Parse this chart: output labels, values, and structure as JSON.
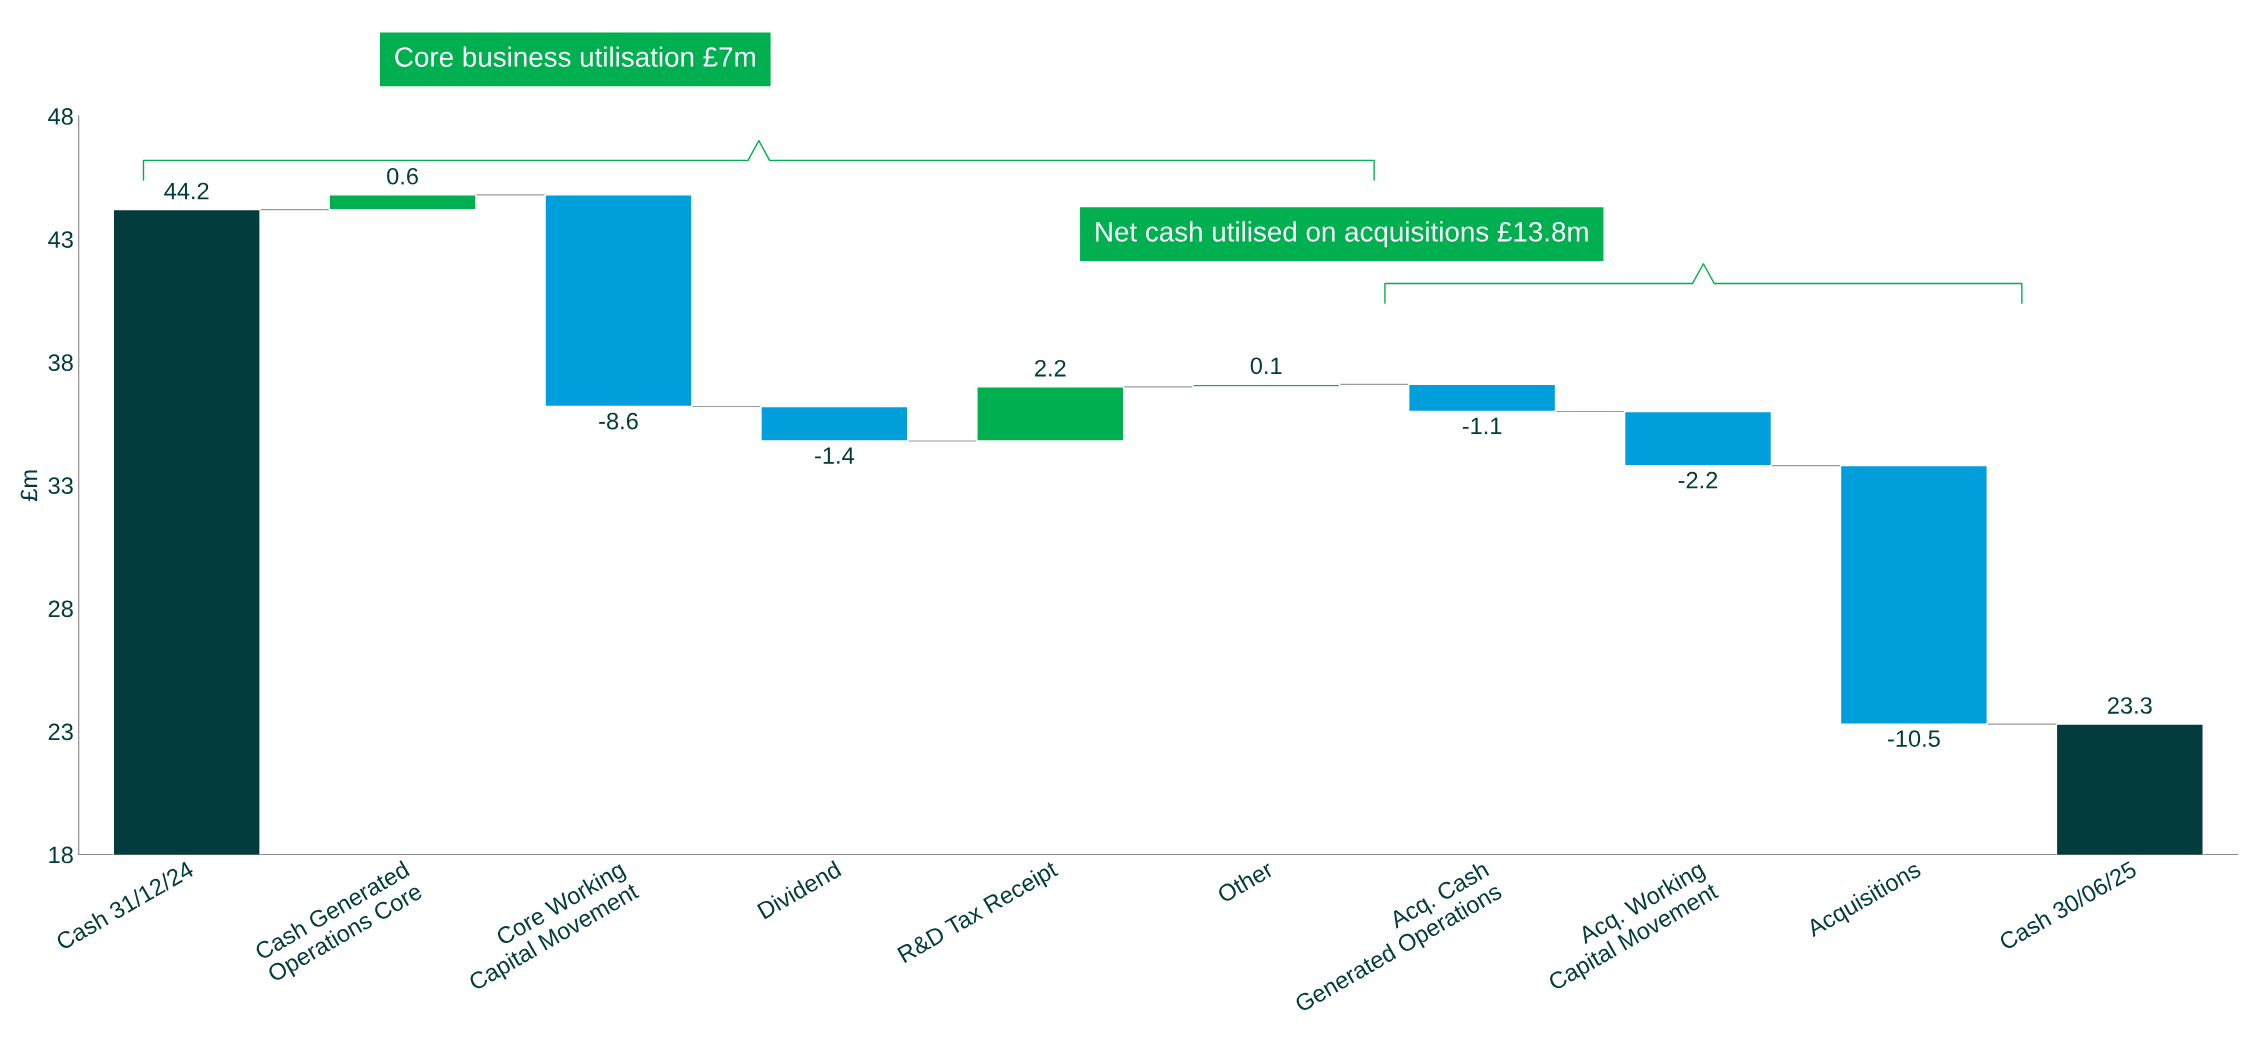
{
  "chart_data": {
    "type": "bar",
    "ylabel": "£m",
    "categories": [
      "Cash 31/12/24",
      "Cash Generated\nOperations Core",
      "Core Working\nCapital Movement",
      "Dividend",
      "R&D Tax Receipt",
      "Other",
      "Acq. Cash\nGenerated Operations",
      "Acq. Working\nCapital Movement",
      "Acquisitions",
      "Cash 30/06/25"
    ],
    "values": [
      44.2,
      0.6,
      -8.6,
      -1.4,
      2.2,
      0.1,
      -1.1,
      -2.2,
      -10.5,
      23.3
    ],
    "base": [
      0,
      44.2,
      44.8,
      36.2,
      34.8,
      37.0,
      37.1,
      36.0,
      33.8,
      0
    ],
    "colors": [
      "#023c3c",
      "#00b050",
      "#009fdb",
      "#009fdb",
      "#00b050",
      "#00b050",
      "#009fdb",
      "#009fdb",
      "#009fdb",
      "#023c3c"
    ],
    "ylim": [
      18,
      48
    ],
    "yticks": [
      18,
      23,
      28,
      33,
      38,
      43,
      48
    ],
    "data_labels": true,
    "grid": false,
    "annotations": [
      "Core business utilisation £7m",
      "Net cash utilised on acquisitions £13.8m"
    ]
  }
}
